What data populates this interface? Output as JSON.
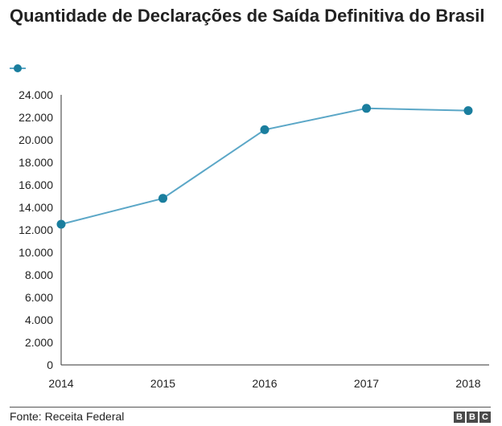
{
  "title": "Quantidade de Declarações de Saída Definitiva do Brasil",
  "source": "Fonte: Receita Federal",
  "logo_letters": [
    "B",
    "B",
    "C"
  ],
  "colors": {
    "line": "#5ba7c7",
    "marker": "#1a7e9e",
    "axis": "#333333"
  },
  "chart_data": {
    "type": "line",
    "title": "Quantidade de Declarações de Saída Definitiva do Brasil",
    "xlabel": "",
    "ylabel": "",
    "ylim": [
      0,
      24000
    ],
    "grid": false,
    "legend": "top-left",
    "yticks": [
      0,
      2000,
      4000,
      6000,
      8000,
      10000,
      12000,
      14000,
      16000,
      18000,
      20000,
      22000,
      24000
    ],
    "ytick_labels": [
      "0",
      "2.000",
      "4.000",
      "6.000",
      "8.000",
      "10.000",
      "12.000",
      "14.000",
      "16.000",
      "18.000",
      "20.000",
      "22.000",
      "24.000"
    ],
    "categories": [
      "2014",
      "2015",
      "2016",
      "2017",
      "2018"
    ],
    "series": [
      {
        "name": "",
        "values": [
          12500,
          14800,
          20900,
          22800,
          22600
        ]
      }
    ]
  }
}
